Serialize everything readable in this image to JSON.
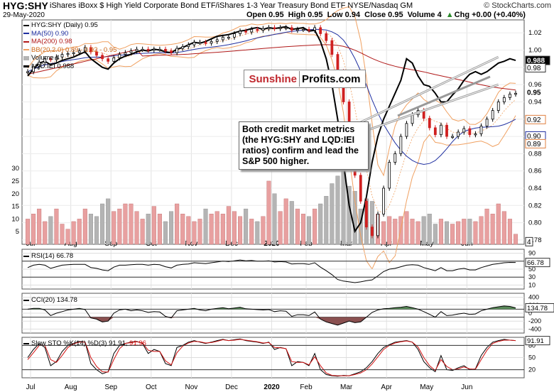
{
  "header": {
    "ticker": "HYG:SHY",
    "description": "iShares iBoxx $ High Yield Corporate Bond ETF/iShares 1-3 Year Treasury Bond ETF  NYSE/Nasdaq GM",
    "source": "© StockCharts.com",
    "date": "29-May-2020",
    "open": "Open 0.95",
    "high": "High 0.95",
    "low": "Low 0.94",
    "close": "Close 0.95",
    "volume": "Volume 4",
    "change": "Chg +0.00 (+0.40%)",
    "change_marker": "▲"
  },
  "legend": {
    "main": "HYG:SHY (Daily) 0.95",
    "ma50": "MA(50) 0.90",
    "ma200": "MA(200) 0.98",
    "bb": "BB(20,2.0) 0.89 - 0.92 - 0.95",
    "volume": "Volume 4",
    "lqd": "LQD:IEI 0.988"
  },
  "colors": {
    "ma50": "#1f2fa0",
    "ma200": "#b01818",
    "bb": "#f0a060",
    "up_volume": "#e8a0a0",
    "down_volume": "#b4b4b4",
    "candle_up": "#000000",
    "candle_down": "#d02020",
    "trendline": "#999999",
    "rsi_line": "#000000",
    "cci_fill_pos": "#5a8a5a",
    "cci_fill_neg": "#8a5050",
    "sto_k": "#000000",
    "sto_d": "#d01010"
  },
  "logo": {
    "part1": "Sunshine",
    "part2": "Profits.com"
  },
  "annotation": "Both credit market metrics (the HYG:SHY and LQD:IEI ratios) confirm and lead the S&P 500 higher.",
  "panels": {
    "rsi": {
      "label": "RSI(14) 66.78",
      "value_tag": "66.78",
      "ticks": [
        "90",
        "70",
        "50",
        "30",
        "10"
      ]
    },
    "cci": {
      "label": "CCI(20) 134.78",
      "value_tag": "134.78",
      "ticks": [
        "400",
        "200",
        "0",
        "-200",
        "-400"
      ]
    },
    "sto": {
      "label_pre": "Slow STO %K(14) %D(3) 91.91,",
      "label_d": "91.96",
      "value_tag": "91.91",
      "ticks": [
        "80",
        "50",
        "20"
      ]
    }
  },
  "chart_data": {
    "type": "line",
    "title": "HYG:SHY",
    "xlabel": "",
    "ylabel": "",
    "x_ticks": [
      "Jul",
      "Aug",
      "Sep",
      "Oct",
      "Nov",
      "Dec",
      "2020",
      "Feb",
      "Mar",
      "Apr",
      "May",
      "Jun"
    ],
    "y_ticks": [
      "1.02",
      "1.00",
      "0.98",
      "0.96",
      "0.94",
      "0.92",
      "0.90",
      "0.88",
      "0.86",
      "0.84",
      "0.82",
      "0.80",
      "0.78"
    ],
    "ylim": [
      0.775,
      1.035
    ],
    "volume_ticks": [
      "30",
      "25",
      "20",
      "15",
      "10",
      "5"
    ],
    "volume_ylim": [
      0,
      32
    ],
    "price_tags": [
      {
        "label": "0.988",
        "value": 0.988,
        "style": "black-box"
      },
      {
        "label": "0.98",
        "value": 0.9795,
        "style": "outline"
      },
      {
        "label": "0.95",
        "value": 0.951,
        "style": "bold"
      },
      {
        "label": "0.92",
        "value": 0.9195,
        "style": "outline-orange"
      },
      {
        "label": "0.90",
        "value": 0.9005,
        "style": "outline-blue"
      },
      {
        "label": "0.89",
        "value": 0.8915,
        "style": "outline-orange"
      },
      {
        "label": "4",
        "value": 0.778,
        "style": "outline"
      }
    ],
    "series": [
      {
        "name": "HYG:SHY (Daily)",
        "values": [
          0.975,
          0.981,
          0.986,
          0.99,
          0.989,
          0.992,
          0.995,
          0.996,
          0.997,
          0.999,
          1.003,
          0.998,
          0.994,
          0.99,
          0.987,
          0.991,
          0.995,
          0.997,
          0.999,
          1.001,
          1.001,
          1.0,
          1.001,
          1.001,
          0.999,
          0.997,
          1.002,
          1.004,
          1.006,
          1.009,
          1.009,
          1.008,
          1.01,
          1.012,
          1.015,
          1.015,
          1.019,
          1.022,
          1.021,
          1.024,
          1.023,
          1.025,
          1.026,
          1.025,
          1.026,
          1.026,
          1.023,
          1.024,
          1.024,
          1.023,
          1.026,
          1.019,
          1.011,
          0.995,
          0.975,
          0.94,
          0.895,
          0.855,
          0.825,
          0.795,
          0.785,
          0.81,
          0.84,
          0.87,
          0.88,
          0.9,
          0.915,
          0.925,
          0.93,
          0.921,
          0.91,
          0.902,
          0.913,
          0.9,
          0.9,
          0.905,
          0.909,
          0.902,
          0.903,
          0.912,
          0.92,
          0.93,
          0.94,
          0.945,
          0.949,
          0.95
        ]
      },
      {
        "name": "LQD:IEI",
        "values": [
          0.97,
          0.978,
          0.985,
          0.987,
          0.983,
          0.985,
          0.988,
          0.99,
          0.992,
          0.995,
          0.998,
          0.99,
          0.985,
          0.98,
          0.978,
          0.985,
          0.99,
          0.993,
          0.995,
          0.998,
          1.0,
          0.999,
          1.001,
          1.0,
          0.998,
          0.997,
          1.001,
          1.003,
          1.006,
          1.009,
          1.008,
          1.01,
          1.013,
          1.016,
          1.017,
          1.018,
          1.02,
          1.022,
          1.023,
          1.025,
          1.026,
          1.024,
          1.026,
          1.025,
          1.026,
          1.027,
          1.024,
          1.025,
          1.026,
          1.022,
          1.023,
          1.01,
          0.99,
          0.96,
          0.92,
          0.87,
          0.82,
          0.79,
          0.8,
          0.83,
          0.87,
          0.9,
          0.92,
          0.935,
          0.95,
          0.965,
          0.99,
          0.985,
          0.97,
          0.96,
          0.958,
          0.95,
          0.94,
          0.94,
          0.948,
          0.955,
          0.965,
          0.972,
          0.975,
          0.972,
          0.975,
          0.98,
          0.985,
          0.987,
          0.99,
          0.988
        ]
      }
    ],
    "trendlines": [
      {
        "from": [
          55.0,
          0.907
        ],
        "to": [
          82.0,
          0.992
        ]
      },
      {
        "from": [
          56.0,
          0.9
        ],
        "to": [
          82.0,
          0.96
        ]
      }
    ],
    "volume": [
      10,
      12,
      14,
      9,
      11,
      14,
      8,
      6,
      9,
      10,
      14,
      12,
      11,
      16,
      18,
      13,
      14,
      16,
      16,
      13,
      10,
      12,
      15,
      12,
      9,
      13,
      16,
      12,
      11,
      9,
      10,
      14,
      12,
      13,
      12,
      15,
      13,
      11,
      14,
      10,
      9,
      11,
      25,
      20,
      13,
      18,
      17,
      14,
      12,
      11,
      14,
      16,
      19,
      24,
      27,
      29,
      23,
      21,
      14,
      18,
      17,
      12,
      9,
      11,
      10,
      11,
      13,
      10,
      9,
      11,
      12,
      8,
      10,
      9,
      8,
      9,
      10,
      10,
      9,
      11,
      14,
      12,
      16,
      13,
      10,
      4
    ],
    "rsi": [
      54,
      60,
      62,
      60,
      52,
      56,
      60,
      61,
      62,
      62,
      62,
      54,
      52,
      48,
      46,
      55,
      60,
      60,
      61,
      62,
      62,
      60,
      62,
      61,
      56,
      53,
      60,
      62,
      63,
      66,
      65,
      64,
      66,
      68,
      70,
      69,
      71,
      73,
      71,
      72,
      70,
      70,
      71,
      68,
      69,
      68,
      63,
      64,
      64,
      62,
      66,
      55,
      46,
      36,
      24,
      20,
      18,
      16,
      18,
      21,
      23,
      33,
      44,
      50,
      52,
      56,
      60,
      61,
      60,
      54,
      50,
      46,
      54,
      46,
      46,
      50,
      52,
      48,
      48,
      54,
      58,
      62,
      64,
      66,
      67,
      66.78
    ],
    "cci": [
      100,
      120,
      120,
      80,
      -60,
      0,
      40,
      80,
      100,
      120,
      90,
      -120,
      -150,
      -220,
      -200,
      0,
      80,
      100,
      60,
      80,
      60,
      20,
      40,
      30,
      -80,
      -120,
      60,
      80,
      100,
      120,
      80,
      60,
      100,
      120,
      140,
      110,
      130,
      150,
      110,
      100,
      90,
      80,
      90,
      40,
      60,
      50,
      -80,
      -40,
      -40,
      -60,
      30,
      -150,
      -220,
      -260,
      -300,
      -250,
      -200,
      -240,
      -220,
      -100,
      20,
      80,
      110,
      120,
      140,
      150,
      170,
      140,
      100,
      40,
      -30,
      -100,
      40,
      -60,
      -50,
      -20,
      0,
      -30,
      -20,
      60,
      100,
      140,
      160,
      180,
      170,
      134.78
    ],
    "sto_k": [
      50,
      70,
      85,
      75,
      30,
      40,
      65,
      80,
      85,
      90,
      88,
      35,
      20,
      10,
      15,
      60,
      80,
      85,
      88,
      90,
      85,
      60,
      70,
      65,
      35,
      30,
      75,
      80,
      88,
      92,
      88,
      85,
      88,
      92,
      95,
      92,
      94,
      96,
      92,
      90,
      88,
      85,
      88,
      70,
      75,
      72,
      30,
      40,
      38,
      30,
      60,
      20,
      8,
      5,
      4,
      6,
      5,
      10,
      15,
      25,
      40,
      60,
      75,
      82,
      88,
      90,
      92,
      88,
      70,
      40,
      25,
      15,
      55,
      20,
      18,
      25,
      30,
      20,
      22,
      55,
      75,
      88,
      92,
      95,
      93,
      91.91
    ],
    "sto_d": [
      45,
      62,
      80,
      80,
      45,
      38,
      55,
      75,
      84,
      88,
      88,
      50,
      28,
      15,
      14,
      45,
      72,
      85,
      87,
      89,
      86,
      68,
      65,
      65,
      42,
      32,
      62,
      78,
      86,
      90,
      89,
      86,
      87,
      90,
      94,
      92,
      93,
      95,
      93,
      91,
      89,
      86,
      87,
      75,
      74,
      72,
      40,
      38,
      38,
      32,
      52,
      30,
      12,
      6,
      5,
      5,
      5,
      8,
      12,
      20,
      34,
      52,
      70,
      80,
      86,
      89,
      91,
      88,
      76,
      50,
      30,
      18,
      45,
      28,
      20,
      22,
      27,
      22,
      21,
      45,
      68,
      85,
      90,
      93,
      93,
      91.96
    ]
  }
}
